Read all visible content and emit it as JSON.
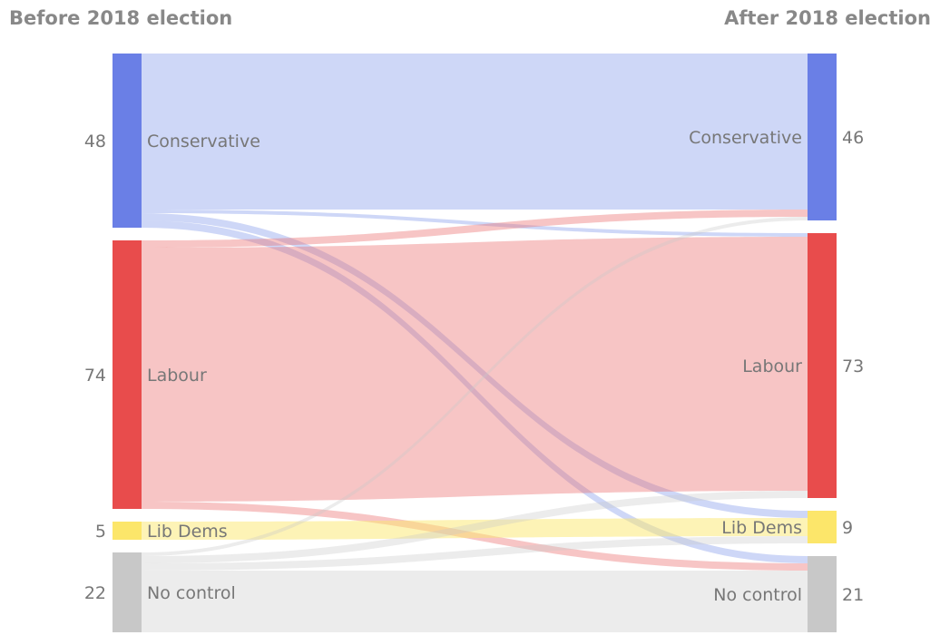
{
  "headings": {
    "before": "Before 2018 election",
    "after": "After 2018 election"
  },
  "chart_data": {
    "type": "sankey",
    "left_title": "Before 2018 election",
    "right_title": "After 2018 election",
    "nodes_left": [
      {
        "id": "con",
        "label": "Conservative",
        "value": 48,
        "color": "#6a7fe6"
      },
      {
        "id": "lab",
        "label": "Labour",
        "value": 74,
        "color": "#e84c4c"
      },
      {
        "id": "ld",
        "label": "Lib Dems",
        "value": 5,
        "color": "#fce66a"
      },
      {
        "id": "nc",
        "label": "No control",
        "value": 22,
        "color": "#c8c8c8"
      }
    ],
    "nodes_right": [
      {
        "id": "con",
        "label": "Conservative",
        "value": 46,
        "color": "#6a7fe6"
      },
      {
        "id": "lab",
        "label": "Labour",
        "value": 73,
        "color": "#e84c4c"
      },
      {
        "id": "ld",
        "label": "Lib Dems",
        "value": 9,
        "color": "#fce66a"
      },
      {
        "id": "nc",
        "label": "No control",
        "value": 21,
        "color": "#c8c8c8"
      }
    ],
    "link_colors": {
      "con": "rgba(120,145,232,0.36)",
      "lab": "rgba(236,110,110,0.40)",
      "ld": "rgba(252,232,110,0.50)",
      "nc": "rgba(200,200,200,0.35)"
    },
    "links": [
      {
        "from": "con",
        "to": "con",
        "value": 43
      },
      {
        "from": "con",
        "to": "lab",
        "value": 1
      },
      {
        "from": "con",
        "to": "ld",
        "value": 2
      },
      {
        "from": "con",
        "to": "nc",
        "value": 2
      },
      {
        "from": "lab",
        "to": "con",
        "value": 2
      },
      {
        "from": "lab",
        "to": "lab",
        "value": 70
      },
      {
        "from": "lab",
        "to": "nc",
        "value": 2
      },
      {
        "from": "ld",
        "to": "ld",
        "value": 5
      },
      {
        "from": "nc",
        "to": "con",
        "value": 1
      },
      {
        "from": "nc",
        "to": "lab",
        "value": 2
      },
      {
        "from": "nc",
        "to": "ld",
        "value": 2
      },
      {
        "from": "nc",
        "to": "nc",
        "value": 17
      }
    ]
  }
}
